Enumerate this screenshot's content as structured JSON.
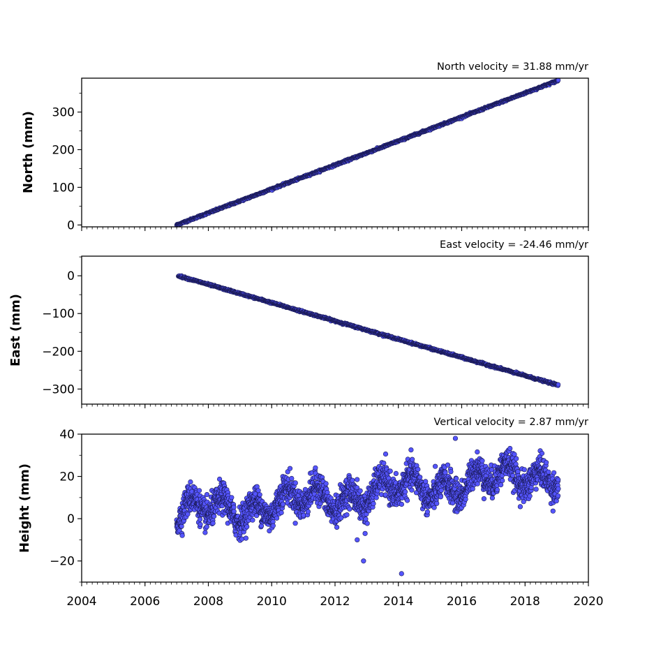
{
  "chart_data": [
    {
      "type": "scatter",
      "title": "North velocity = 31.88 mm/yr",
      "ylabel": "North (mm)",
      "xlim": [
        2004,
        2020
      ],
      "ylim": [
        -5,
        390
      ],
      "yticks": [
        0,
        100,
        200,
        300
      ],
      "ytick_labels": [
        "0",
        "100",
        "200",
        "300"
      ],
      "x_range": [
        2007.0,
        2019.05
      ],
      "trend": {
        "start": [
          2007.0,
          0
        ],
        "end": [
          2019.05,
          384
        ]
      },
      "scatter_mm": 3,
      "point_color": "#5555ff",
      "edge_color": "#1a1a55",
      "grid": false
    },
    {
      "type": "scatter",
      "title": "East velocity = -24.46 mm/yr",
      "ylabel": "East (mm)",
      "xlim": [
        2004,
        2020
      ],
      "ylim": [
        -340,
        52
      ],
      "yticks": [
        0,
        -100,
        -200,
        -300
      ],
      "ytick_labels": [
        "0",
        "−100",
        "−200",
        "−300"
      ],
      "x_range": [
        2007.05,
        2019.05
      ],
      "trend": {
        "start": [
          2007.05,
          0
        ],
        "end": [
          2019.05,
          -290
        ]
      },
      "scatter_mm": 3,
      "point_color": "#5555ff",
      "edge_color": "#1a1a55",
      "grid": false
    },
    {
      "type": "scatter",
      "title": "Vertical velocity = 2.87 mm/yr",
      "ylabel": "Height (mm)",
      "xlim": [
        2004,
        2020
      ],
      "ylim": [
        -30,
        40
      ],
      "yticks": [
        40,
        20,
        0,
        -20
      ],
      "ytick_labels": [
        "40",
        "20",
        "0",
        "−20"
      ],
      "xticks": [
        2004,
        2006,
        2008,
        2010,
        2012,
        2014,
        2016,
        2018,
        2020
      ],
      "xtick_labels": [
        "2004",
        "2006",
        "2008",
        "2010",
        "2012",
        "2014",
        "2016",
        "2018",
        "2020"
      ],
      "x_range": [
        2007.0,
        2019.05
      ],
      "trend_line": {
        "start": [
          2007.0,
          2
        ],
        "end": [
          2019.05,
          22
        ]
      },
      "seasonal_amplitude_mm": 5,
      "scatter_mm": 4,
      "outliers": [
        [
          2012.9,
          -20
        ],
        [
          2012.7,
          -10
        ],
        [
          2014.1,
          -26
        ],
        [
          2012.95,
          -7
        ],
        [
          2015.8,
          38
        ]
      ],
      "point_color": "#5555ff",
      "edge_color": "#1a1a55",
      "grid": false
    }
  ]
}
